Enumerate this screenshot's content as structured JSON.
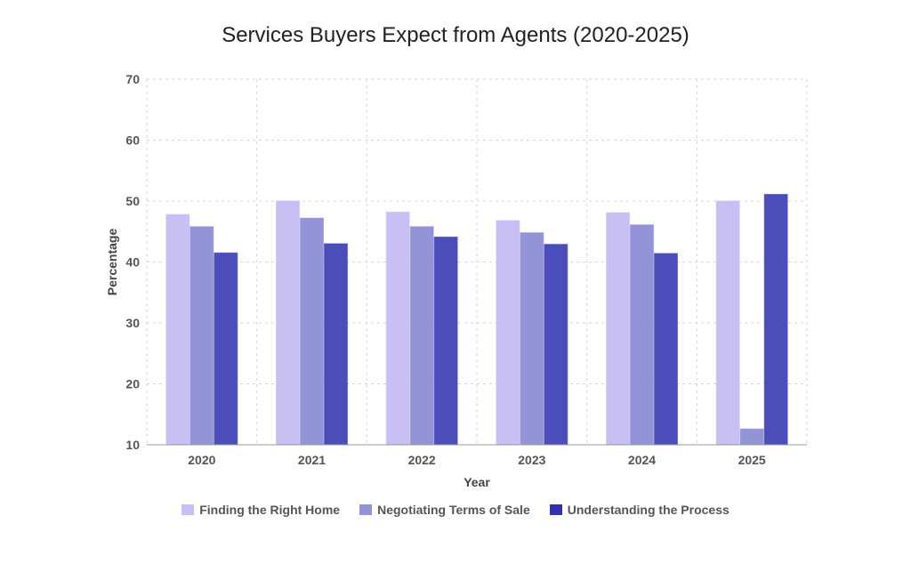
{
  "chart_data": {
    "type": "bar",
    "title": "Services Buyers Expect from Agents (2020-2025)",
    "xlabel": "Year",
    "ylabel": "Percentage",
    "ylim": [
      10,
      70
    ],
    "yticks": [
      10,
      20,
      30,
      40,
      50,
      60,
      70
    ],
    "grid": true,
    "legend_position": "bottom",
    "categories": [
      "2020",
      "2021",
      "2022",
      "2023",
      "2024",
      "2025"
    ],
    "series": [
      {
        "name": "Finding the Right Home",
        "color": "#c8c0f5",
        "values": [
          47.8,
          50.0,
          48.2,
          46.8,
          48.1,
          50.0
        ]
      },
      {
        "name": "Negotiating Terms of Sale",
        "color": "#9393d8",
        "values": [
          45.8,
          47.2,
          45.8,
          44.8,
          46.1,
          12.6
        ]
      },
      {
        "name": "Understanding the Process",
        "color": "#4b4dbb",
        "values": [
          41.5,
          43.0,
          44.1,
          42.9,
          41.4,
          51.1
        ]
      }
    ]
  }
}
